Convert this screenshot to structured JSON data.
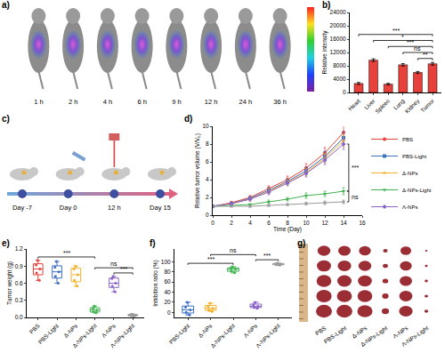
{
  "a": {
    "label": "a)",
    "time_points": [
      "1 h",
      "2 h",
      "4 h",
      "6 h",
      "9 h",
      "12 h",
      "24 h",
      "36 h"
    ]
  },
  "c": {
    "label": "c)",
    "timeline": [
      "Day -7",
      "Day 0",
      "12 h",
      "Day 15"
    ]
  },
  "g": {
    "label": "g)",
    "groups": [
      "PBS",
      "PBS-Light",
      "Δ-NPs",
      "Δ-NPs-Light",
      "Λ-NPs",
      "Λ-NPs-Light"
    ]
  },
  "chart_data": [
    {
      "label": "b)",
      "type": "bar",
      "categories": [
        "Heart",
        "Liver",
        "Spleen",
        "Lung",
        "Kidney",
        "Tumor"
      ],
      "values": [
        2700,
        9700,
        2500,
        8300,
        6000,
        8600
      ],
      "errors": [
        300,
        400,
        250,
        350,
        300,
        400
      ],
      "color": "#e8403a",
      "y_label": "Relative intensity",
      "ylim": [
        0,
        24000
      ],
      "yticks": [
        0,
        4000,
        8000,
        12000,
        16000,
        20000,
        24000
      ],
      "annotations": [
        {
          "text": "***",
          "from": "Heart",
          "to": "Tumor"
        },
        {
          "text": "*",
          "from": "Liver",
          "to": "Tumor"
        },
        {
          "text": "***",
          "from": "Spleen",
          "to": "Tumor"
        },
        {
          "text": "ns",
          "from": "Lung",
          "to": "Tumor"
        },
        {
          "text": "**",
          "from": "Kidney",
          "to": "Tumor"
        }
      ]
    },
    {
      "label": "d)",
      "type": "line",
      "x": [
        0,
        2,
        4,
        6,
        8,
        10,
        12,
        14
      ],
      "xlim": [
        0,
        16
      ],
      "xticks": [
        0,
        2,
        4,
        6,
        8,
        10,
        12,
        14,
        16
      ],
      "ylim": [
        0,
        10
      ],
      "yticks": [
        0,
        2,
        4,
        6,
        8,
        10
      ],
      "x_label": "Time (Day)",
      "y_label": "Relative tumor volume (V/V₀)",
      "legend": "right",
      "series": [
        {
          "name": "PBS",
          "color": "#e8403a",
          "marker": "circle",
          "values": [
            1,
            1.4,
            2.0,
            3.0,
            4.0,
            5.3,
            7.0,
            9.3
          ],
          "errors": [
            0,
            0.1,
            0.2,
            0.3,
            0.4,
            0.5,
            0.6,
            0.8
          ]
        },
        {
          "name": "PBS-Light",
          "color": "#3b6fc4",
          "marker": "square",
          "values": [
            1,
            1.3,
            1.9,
            2.8,
            3.8,
            5.0,
            6.6,
            8.7
          ],
          "errors": [
            0,
            0.1,
            0.2,
            0.3,
            0.3,
            0.4,
            0.6,
            0.7
          ]
        },
        {
          "name": "Δ-NPs",
          "color": "#f2b22c",
          "marker": "triangle-up",
          "values": [
            1,
            1.3,
            1.8,
            2.7,
            3.7,
            4.8,
            6.4,
            8.4
          ],
          "errors": [
            0,
            0.1,
            0.2,
            0.3,
            0.3,
            0.4,
            0.5,
            0.7
          ]
        },
        {
          "name": "Δ-NPs-Light",
          "color": "#3fb34f",
          "marker": "triangle-down",
          "values": [
            1,
            1.1,
            1.2,
            1.5,
            1.8,
            2.2,
            2.4,
            2.7
          ],
          "errors": [
            0,
            0.1,
            0.1,
            0.2,
            0.2,
            0.3,
            0.3,
            0.4
          ]
        },
        {
          "name": "Λ-NPs",
          "color": "#8a63c9",
          "marker": "diamond",
          "values": [
            1,
            1.3,
            1.8,
            2.6,
            3.6,
            4.7,
            6.2,
            8.0
          ],
          "errors": [
            0,
            0.1,
            0.2,
            0.3,
            0.3,
            0.4,
            0.5,
            0.6
          ]
        },
        {
          "name": "Λ-NPs-Light",
          "color": "#9a9a9a",
          "marker": "star",
          "values": [
            1,
            1.0,
            1.0,
            1.1,
            1.2,
            1.3,
            1.4,
            1.5
          ],
          "errors": [
            0,
            0.05,
            0.1,
            0.1,
            0.1,
            0.15,
            0.2,
            0.2
          ]
        }
      ],
      "annotations": [
        {
          "text": "***",
          "from": "Λ-NPs",
          "to": "Δ-NPs-Light"
        },
        {
          "text": "ns",
          "from": "Δ-NPs-Light",
          "to": "Λ-NPs-Light"
        }
      ]
    },
    {
      "label": "e)",
      "type": "box",
      "categories": [
        "PBS",
        "PBS-Light",
        "Δ-NPs",
        "Δ-NPs-Light",
        "Λ-NPs",
        "Λ-NPs-Light"
      ],
      "values": [
        [
          0.65,
          0.78,
          0.85,
          0.92,
          1.0
        ],
        [
          0.6,
          0.72,
          0.8,
          0.88,
          0.98
        ],
        [
          0.55,
          0.65,
          0.75,
          0.85,
          0.9
        ],
        [
          0.08,
          0.1,
          0.13,
          0.16,
          0.2
        ],
        [
          0.45,
          0.55,
          0.6,
          0.68,
          0.72
        ],
        [
          0.02,
          0.03,
          0.04,
          0.05,
          0.06
        ]
      ],
      "colors": [
        "#e8403a",
        "#3b6fc4",
        "#f2b22c",
        "#3fb34f",
        "#8a63c9",
        "#9a9a9a"
      ],
      "y_label": "Tumor weight (g)",
      "ylim": [
        0,
        1.2
      ],
      "yticks": [
        {
          "value": 0,
          "label": "0.0"
        },
        0.3,
        0.6,
        0.9,
        1.2
      ],
      "annotations": [
        {
          "text": "***",
          "from": "PBS",
          "to": "Δ-NPs-Light"
        },
        {
          "text": "***",
          "from": "Λ-NPs",
          "to": "Λ-NPs-Light"
        },
        {
          "text": "ns",
          "from": "Δ-NPs-Light",
          "to": "Λ-NPs-Light"
        }
      ]
    },
    {
      "label": "f)",
      "type": "box",
      "categories": [
        "PBS-Light",
        "Δ-NPs",
        "Δ-NPs-Light",
        "Λ-NPs",
        "Λ-NPs-Light"
      ],
      "values": [
        [
          -5,
          0,
          5,
          10,
          20
        ],
        [
          2,
          5,
          8,
          12,
          18
        ],
        [
          78,
          82,
          85,
          87,
          90
        ],
        [
          8,
          10,
          12,
          15,
          20
        ],
        [
          93,
          94,
          95,
          96,
          97
        ]
      ],
      "colors": [
        "#3b6fc4",
        "#f2b22c",
        "#3fb34f",
        "#8a63c9",
        "#9a9a9a"
      ],
      "y_label": "Inhibition ratio (%)",
      "ylim": [
        -10,
        125
      ],
      "yticks": [
        0,
        20,
        40,
        60,
        80,
        100
      ],
      "annotations": [
        {
          "text": "***",
          "from": "PBS-Light",
          "to": "Δ-NPs-Light"
        },
        {
          "text": "***",
          "from": "Λ-NPs",
          "to": "Λ-NPs-Light"
        },
        {
          "text": "ns",
          "from": "Δ-NPs",
          "to": "Λ-NPs"
        }
      ]
    }
  ]
}
